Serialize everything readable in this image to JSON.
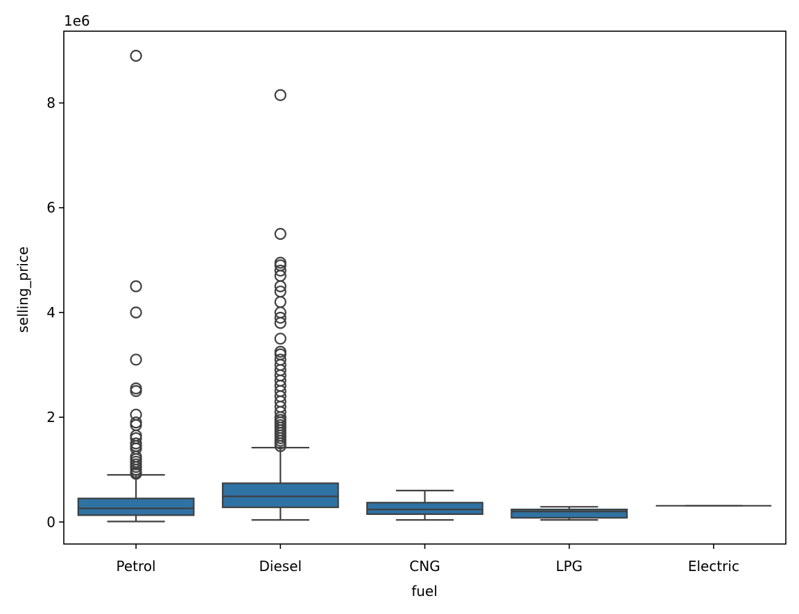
{
  "chart_data": {
    "type": "box",
    "title": "",
    "xlabel": "fuel",
    "ylabel": "selling_price",
    "y_offset_label": "1e6",
    "y_scale": 1000000,
    "ylim": [
      -0.42,
      9.37
    ],
    "yticks": [
      0,
      2,
      4,
      6,
      8
    ],
    "ytick_labels": [
      "0",
      "2",
      "4",
      "6",
      "8"
    ],
    "grid": false,
    "box_color": "#2f72a4",
    "line_color": "#3f3f3f",
    "categories": [
      "Petrol",
      "Diesel",
      "CNG",
      "LPG",
      "Electric"
    ],
    "boxes": [
      {
        "name": "Petrol",
        "whisker_low": 0.01,
        "q1": 0.13,
        "median": 0.26,
        "q3": 0.45,
        "whisker_high": 0.9,
        "outliers": [
          8.9,
          4.5,
          4.0,
          3.1,
          2.55,
          2.5,
          2.05,
          1.9,
          1.85,
          1.65,
          1.6,
          1.5,
          1.45,
          1.4,
          1.25,
          1.2,
          1.15,
          1.1,
          1.05,
          1.0,
          0.95,
          0.92
        ]
      },
      {
        "name": "Diesel",
        "whisker_low": 0.04,
        "q1": 0.28,
        "median": 0.49,
        "q3": 0.74,
        "whisker_high": 1.42,
        "outliers": [
          8.15,
          5.5,
          4.95,
          4.9,
          4.8,
          4.7,
          4.5,
          4.4,
          4.2,
          4.0,
          3.9,
          3.8,
          3.5,
          3.25,
          3.2,
          3.1,
          3.0,
          2.9,
          2.8,
          2.7,
          2.6,
          2.5,
          2.4,
          2.3,
          2.2,
          2.1,
          2.0,
          1.95,
          1.9,
          1.85,
          1.8,
          1.75,
          1.7,
          1.65,
          1.6,
          1.55,
          1.5,
          1.45
        ]
      },
      {
        "name": "CNG",
        "whisker_low": 0.04,
        "q1": 0.15,
        "median": 0.24,
        "q3": 0.37,
        "whisker_high": 0.6,
        "outliers": []
      },
      {
        "name": "LPG",
        "whisker_low": 0.04,
        "q1": 0.08,
        "median": 0.2,
        "q3": 0.24,
        "whisker_high": 0.29,
        "outliers": []
      },
      {
        "name": "Electric",
        "whisker_low": 0.31,
        "q1": 0.31,
        "median": 0.31,
        "q3": 0.31,
        "whisker_high": 0.31,
        "outliers": []
      }
    ]
  }
}
